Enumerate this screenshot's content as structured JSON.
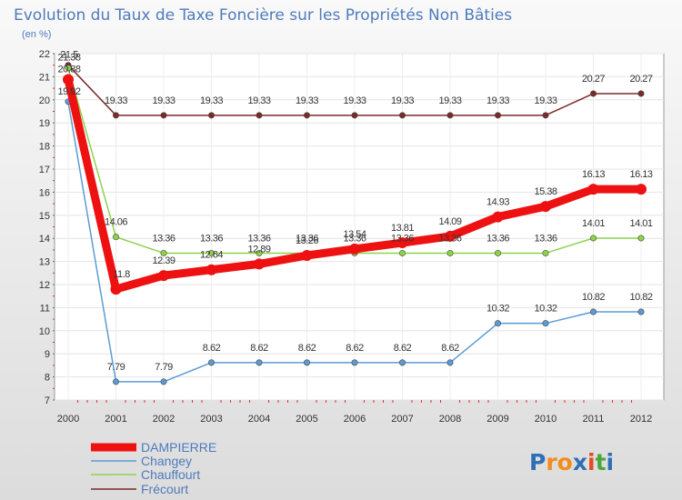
{
  "chart_data": {
    "type": "line",
    "title": "Evolution du Taux de Taxe Foncière sur les Propriétés Non Bâties",
    "subtitle": "(en %)",
    "xlabel": "",
    "ylabel": "",
    "ylim": [
      7,
      22
    ],
    "grid": true,
    "legend_position": "bottom-left",
    "categories": [
      "2000",
      "2001",
      "2002",
      "2003",
      "2004",
      "2005",
      "2006",
      "2007",
      "2008",
      "2009",
      "2010",
      "2011",
      "2012"
    ],
    "yticks": [
      "7",
      "8",
      "9",
      "10",
      "11",
      "12",
      "13",
      "14",
      "15",
      "16",
      "17",
      "18",
      "19",
      "20",
      "21",
      "22"
    ],
    "series": [
      {
        "name": "DAMPIERRE",
        "color": "#ee1111",
        "values": [
          20.88,
          11.8,
          12.39,
          12.64,
          12.89,
          13.26,
          13.54,
          13.81,
          14.09,
          14.93,
          15.38,
          16.13,
          16.13
        ],
        "labels": [
          "20.88",
          "11.8",
          "12.39",
          "12.64",
          "12.89",
          "13.26",
          "13.54",
          "13.81",
          "14.09",
          "14.93",
          "15.38",
          "16.13",
          "16.13"
        ]
      },
      {
        "name": "Changey",
        "color": "#5b9bd5",
        "values": [
          19.92,
          7.79,
          7.79,
          8.62,
          8.62,
          8.62,
          8.62,
          8.62,
          8.62,
          10.32,
          10.32,
          10.82,
          10.82
        ],
        "labels": [
          "19.92",
          "7.79",
          "7.79",
          "8.62",
          "8.62",
          "8.62",
          "8.62",
          "8.62",
          "8.62",
          "10.32",
          "10.32",
          "10.82",
          "10.82"
        ]
      },
      {
        "name": "Chauffourt",
        "color": "#8ed24a",
        "values": [
          21.38,
          14.06,
          13.36,
          13.36,
          13.36,
          13.36,
          13.36,
          13.36,
          13.36,
          13.36,
          13.36,
          14.01,
          14.01
        ],
        "labels": [
          "21.38",
          "14.06",
          "13.36",
          "13.36",
          "13.36",
          "13.36",
          "13.36",
          "13.36",
          "13.36",
          "13.36",
          "13.36",
          "14.01",
          "14.01"
        ]
      },
      {
        "name": "Frécourt",
        "color": "#7a2a2a",
        "values": [
          21.5,
          19.33,
          19.33,
          19.33,
          19.33,
          19.33,
          19.33,
          19.33,
          19.33,
          19.33,
          19.33,
          20.27,
          20.27
        ],
        "labels": [
          "21.5",
          "19.33",
          "19.33",
          "19.33",
          "19.33",
          "19.33",
          "19.33",
          "19.33",
          "19.33",
          "19.33",
          "19.33",
          "20.27",
          "20.27"
        ]
      }
    ]
  },
  "brand": {
    "text": "Proxiti",
    "letters": [
      "P",
      "r",
      "o",
      "x",
      "i",
      "t",
      "i"
    ],
    "colors": [
      "#2f6fb5",
      "#f28c1e",
      "#f28c1e",
      "#2f6fb5",
      "#e64b1f",
      "#4aa83b",
      "#2f6fb5"
    ]
  }
}
